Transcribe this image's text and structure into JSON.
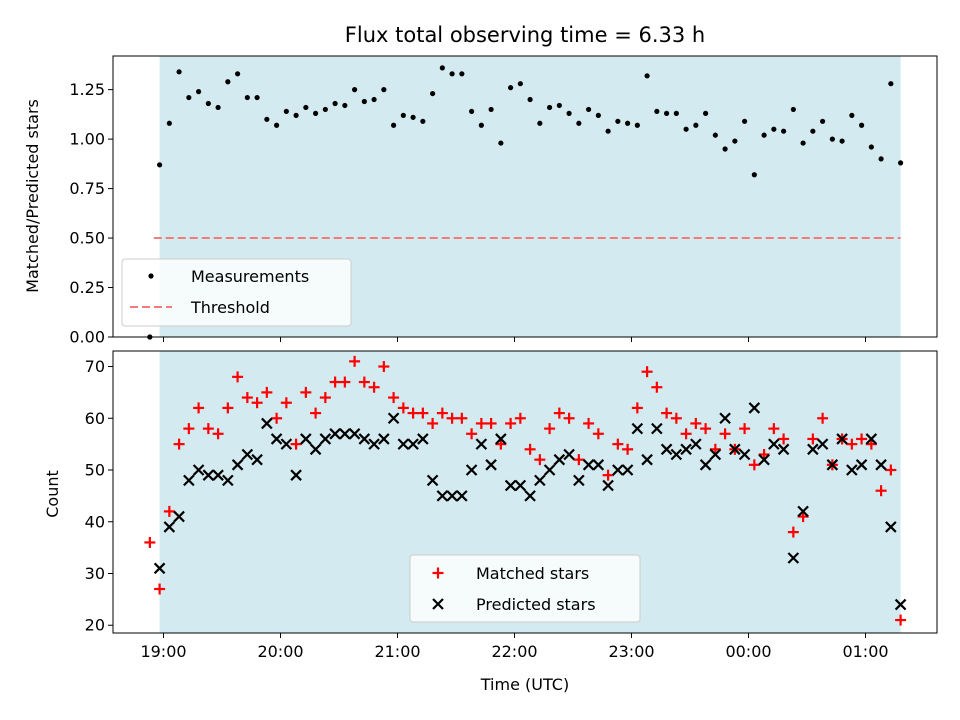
{
  "chart_data": [
    {
      "type": "scatter",
      "title": "Flux total observing time = 6.33 h",
      "ylabel": "Matched/Predicted stars",
      "xlabel": "",
      "ylim": [
        0,
        1.42
      ],
      "yticks": [
        "0.00",
        "0.25",
        "0.50",
        "0.75",
        "1.00",
        "1.25"
      ],
      "shaded_span": [
        "18:58",
        "01:18"
      ],
      "shade_color": "#d3eaf0",
      "threshold": {
        "name": "Threshold",
        "value": 0.5,
        "x_start": "18:55",
        "x_end": "01:18",
        "color": "#f07c7c"
      },
      "legend": {
        "position": "lower-left",
        "entries": [
          "Measurements",
          "Threshold"
        ]
      },
      "series": [
        {
          "name": "Measurements",
          "color": "#000000",
          "marker": "dot",
          "x": [
            "18:53",
            "18:58",
            "19:03",
            "19:08",
            "19:13",
            "19:18",
            "19:23",
            "19:28",
            "19:33",
            "19:38",
            "19:43",
            "19:48",
            "19:53",
            "19:58",
            "20:03",
            "20:08",
            "20:13",
            "20:18",
            "20:23",
            "20:28",
            "20:33",
            "20:38",
            "20:43",
            "20:48",
            "20:53",
            "20:58",
            "21:03",
            "21:08",
            "21:13",
            "21:18",
            "21:23",
            "21:28",
            "21:33",
            "21:38",
            "21:43",
            "21:48",
            "21:53",
            "21:58",
            "22:03",
            "22:08",
            "22:13",
            "22:18",
            "22:23",
            "22:28",
            "22:33",
            "22:38",
            "22:43",
            "22:48",
            "22:53",
            "22:58",
            "23:03",
            "23:08",
            "23:13",
            "23:18",
            "23:23",
            "23:28",
            "23:33",
            "23:38",
            "23:43",
            "23:48",
            "23:53",
            "23:58",
            "00:03",
            "00:08",
            "00:13",
            "00:18",
            "00:23",
            "00:28",
            "00:33",
            "00:38",
            "00:43",
            "00:48",
            "00:53",
            "00:58",
            "01:03",
            "01:08",
            "01:13",
            "01:18"
          ],
          "y": [
            0.0,
            0.87,
            1.08,
            1.34,
            1.21,
            1.24,
            1.18,
            1.16,
            1.29,
            1.33,
            1.21,
            1.21,
            1.1,
            1.07,
            1.14,
            1.12,
            1.16,
            1.13,
            1.15,
            1.18,
            1.17,
            1.25,
            1.19,
            1.2,
            1.25,
            1.07,
            1.12,
            1.11,
            1.09,
            1.23,
            1.36,
            1.33,
            1.33,
            1.14,
            1.07,
            1.15,
            0.98,
            1.26,
            1.28,
            1.2,
            1.08,
            1.16,
            1.17,
            1.13,
            1.08,
            1.15,
            1.12,
            1.04,
            1.09,
            1.08,
            1.07,
            1.32,
            1.14,
            1.13,
            1.13,
            1.05,
            1.07,
            1.13,
            1.02,
            0.95,
            0.99,
            1.09,
            0.82,
            1.02,
            1.05,
            1.04,
            1.15,
            0.98,
            1.04,
            1.09,
            1.0,
            0.99,
            1.12,
            1.07,
            0.96,
            0.9,
            1.28,
            0.88
          ]
        }
      ]
    },
    {
      "type": "scatter",
      "title": "",
      "xlabel": "Time (UTC)",
      "ylabel": "Count",
      "ylim": [
        18.5,
        73
      ],
      "yticks": [
        "20",
        "30",
        "40",
        "50",
        "60",
        "70"
      ],
      "xticks": [
        "19:00",
        "20:00",
        "21:00",
        "22:00",
        "23:00",
        "00:00",
        "01:00"
      ],
      "shaded_span": [
        "18:58",
        "01:18"
      ],
      "legend": {
        "position": "lower-center",
        "entries": [
          "Matched stars",
          "Predicted stars"
        ]
      },
      "series": [
        {
          "name": "Matched stars",
          "color": "#ff0000",
          "marker": "plus",
          "x": [
            "18:53",
            "18:58",
            "19:03",
            "19:08",
            "19:13",
            "19:18",
            "19:23",
            "19:28",
            "19:33",
            "19:38",
            "19:43",
            "19:48",
            "19:53",
            "19:58",
            "20:03",
            "20:08",
            "20:13",
            "20:18",
            "20:23",
            "20:28",
            "20:33",
            "20:38",
            "20:43",
            "20:48",
            "20:53",
            "20:58",
            "21:03",
            "21:08",
            "21:13",
            "21:18",
            "21:23",
            "21:28",
            "21:33",
            "21:38",
            "21:43",
            "21:48",
            "21:53",
            "21:58",
            "22:03",
            "22:08",
            "22:13",
            "22:18",
            "22:23",
            "22:28",
            "22:33",
            "22:38",
            "22:43",
            "22:48",
            "22:53",
            "22:58",
            "23:03",
            "23:08",
            "23:13",
            "23:18",
            "23:23",
            "23:28",
            "23:33",
            "23:38",
            "23:43",
            "23:48",
            "23:53",
            "23:58",
            "00:03",
            "00:08",
            "00:13",
            "00:18",
            "00:23",
            "00:28",
            "00:33",
            "00:38",
            "00:43",
            "00:48",
            "00:53",
            "00:58",
            "01:03",
            "01:08",
            "01:13",
            "01:18"
          ],
          "y": [
            36,
            27,
            42,
            55,
            58,
            62,
            58,
            57,
            62,
            68,
            64,
            63,
            65,
            60,
            63,
            55,
            65,
            61,
            64,
            67,
            67,
            71,
            67,
            66,
            70,
            64,
            62,
            61,
            61,
            59,
            61,
            60,
            60,
            57,
            59,
            59,
            55,
            59,
            60,
            54,
            52,
            58,
            61,
            60,
            52,
            59,
            57,
            49,
            55,
            54,
            62,
            69,
            66,
            61,
            60,
            57,
            59,
            58,
            54,
            57,
            54,
            58,
            51,
            53,
            58,
            56,
            38,
            41,
            56,
            60,
            51,
            56,
            55,
            56,
            55,
            46,
            50,
            21
          ]
        },
        {
          "name": "Predicted stars",
          "color": "#000000",
          "marker": "x",
          "x": [
            "18:58",
            "19:03",
            "19:08",
            "19:13",
            "19:18",
            "19:23",
            "19:28",
            "19:33",
            "19:38",
            "19:43",
            "19:48",
            "19:53",
            "19:58",
            "20:03",
            "20:08",
            "20:13",
            "20:18",
            "20:23",
            "20:28",
            "20:33",
            "20:38",
            "20:43",
            "20:48",
            "20:53",
            "20:58",
            "21:03",
            "21:08",
            "21:13",
            "21:18",
            "21:23",
            "21:28",
            "21:33",
            "21:38",
            "21:43",
            "21:48",
            "21:53",
            "21:58",
            "22:03",
            "22:08",
            "22:13",
            "22:18",
            "22:23",
            "22:28",
            "22:33",
            "22:38",
            "22:43",
            "22:48",
            "22:53",
            "22:58",
            "23:03",
            "23:08",
            "23:13",
            "23:18",
            "23:23",
            "23:28",
            "23:33",
            "23:38",
            "23:43",
            "23:48",
            "23:53",
            "23:58",
            "00:03",
            "00:08",
            "00:13",
            "00:18",
            "00:23",
            "00:28",
            "00:33",
            "00:38",
            "00:43",
            "00:48",
            "00:53",
            "00:58",
            "01:03",
            "01:08",
            "01:13",
            "01:18"
          ],
          "y": [
            31,
            39,
            41,
            48,
            50,
            49,
            49,
            48,
            51,
            53,
            52,
            59,
            56,
            55,
            49,
            56,
            54,
            56,
            57,
            57,
            57,
            56,
            55,
            56,
            60,
            55,
            55,
            56,
            48,
            45,
            45,
            45,
            50,
            55,
            51,
            56,
            47,
            47,
            45,
            48,
            50,
            52,
            53,
            48,
            51,
            51,
            47,
            50,
            50,
            58,
            52,
            58,
            54,
            53,
            54,
            55,
            51,
            53,
            60,
            54,
            53,
            62,
            52,
            55,
            54,
            33,
            42,
            54,
            55,
            51,
            56,
            50,
            51,
            56,
            51,
            39,
            24
          ]
        }
      ]
    }
  ]
}
